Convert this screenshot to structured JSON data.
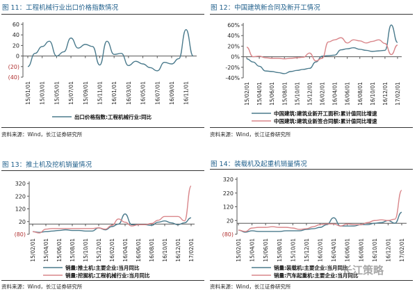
{
  "watermark": "长江策略",
  "chart_data": [
    {
      "type": "line",
      "title": "图 11：工程机械行业出口价格指数情况",
      "source": "资料来源：Wind，长江证券研究所",
      "ylim": [
        -40,
        60
      ],
      "yticks": [
        "60",
        "40",
        "20",
        "0",
        "(20)",
        "(40)"
      ],
      "ytick_values": [
        60,
        40,
        20,
        0,
        -20,
        -40
      ],
      "x": [
        "15/01",
        "15/02",
        "15/03",
        "15/04",
        "15/05",
        "15/06",
        "15/07",
        "15/08",
        "15/09",
        "15/10",
        "15/11",
        "15/12",
        "16/01",
        "16/02",
        "16/03",
        "16/04",
        "16/05",
        "16/06",
        "16/07",
        "16/08",
        "16/09",
        "16/10",
        "16/11",
        "16/12"
      ],
      "xticks": [
        "15/01/01",
        "15/03/01",
        "15/05/01",
        "15/07/01",
        "15/09/01",
        "15/11/01",
        "16/01/01",
        "16/03/01",
        "16/05/01",
        "16/07/01",
        "16/09/01",
        "16/11/01"
      ],
      "series": [
        {
          "name": "出口价格指数:工程机械行业:同比",
          "color": "#4a7a8c",
          "values": [
            -20,
            5,
            18,
            28,
            0,
            8,
            34,
            15,
            22,
            18,
            -17,
            28,
            3,
            5,
            -18,
            -10,
            -15,
            -22,
            -28,
            -12,
            -15,
            -5,
            50,
            0
          ]
        }
      ]
    },
    {
      "type": "line",
      "title": "图 12：中国建筑新合同及新开工情况",
      "source": "资料来源：Wind，长江证券研究所",
      "ylim": [
        -40,
        60
      ],
      "yticks": [
        "60%",
        "40%",
        "20%",
        "0%",
        "-20%",
        "-40%"
      ],
      "ytick_values": [
        60,
        40,
        20,
        0,
        -20,
        -40
      ],
      "x": [
        "15/02",
        "15/03",
        "15/04",
        "15/05",
        "15/06",
        "15/07",
        "15/08",
        "15/09",
        "15/10",
        "15/11",
        "15/12",
        "16/01",
        "16/02",
        "16/03",
        "16/04",
        "16/05",
        "16/06",
        "16/07",
        "16/08",
        "16/09",
        "16/10",
        "16/11",
        "16/12",
        "17/01",
        "17/02"
      ],
      "xticks": [
        "15/02/01",
        "15/04/01",
        "15/06/01",
        "15/08/01",
        "15/10/01",
        "15/12/01",
        "16/02/01",
        "16/04/01",
        "16/06/01",
        "16/08/01",
        "16/10/01",
        "16/12/01",
        "17/02/01"
      ],
      "series": [
        {
          "name": "中国建筑:建筑业新开工面积:累计值同比增速",
          "color": "#4a7a8c",
          "values": [
            -4,
            -10,
            -18,
            -27,
            -28,
            -30,
            -32,
            -28,
            -26,
            -24,
            -22,
            -10,
            1,
            2,
            3,
            13,
            15,
            17,
            14,
            12,
            10,
            11,
            12,
            60,
            27
          ]
        },
        {
          "name": "中国建筑:建筑业新签合同额:累计值同比增速",
          "color": "#d9868a",
          "values": [
            18,
            0,
            1,
            -2,
            -3,
            -3,
            -4,
            -3,
            -2,
            -1,
            7,
            -8,
            -3,
            28,
            32,
            36,
            26,
            32,
            30,
            26,
            29,
            32,
            25,
            4,
            22
          ]
        }
      ]
    },
    {
      "type": "line",
      "title": "图 13：推土机及挖机销量情况",
      "source": "资料来源：Wind，长江证券研究所",
      "ylim": [
        -80,
        320
      ],
      "yticks": [
        "320",
        "220",
        "120",
        "20",
        "(80)"
      ],
      "ytick_values": [
        320,
        220,
        120,
        20,
        -80
      ],
      "x": [
        "15/02",
        "15/03",
        "15/04",
        "15/05",
        "15/06",
        "15/07",
        "15/08",
        "15/09",
        "15/10",
        "15/11",
        "15/12",
        "16/01",
        "16/02",
        "16/03",
        "16/04",
        "16/05",
        "16/06",
        "16/07",
        "16/08",
        "16/09",
        "16/10",
        "16/11",
        "16/12",
        "17/01",
        "17/02"
      ],
      "xticks": [
        "15/02/01",
        "15/04/01",
        "15/06/01",
        "15/08/01",
        "15/10/01",
        "15/12/01",
        "16/02/01",
        "16/04/01",
        "16/06/01",
        "16/08/01",
        "16/10/01",
        "16/12/01",
        "17/02/01"
      ],
      "series": [
        {
          "name": "销量:推土机:主要企业:当月同比",
          "color": "#4a7a8c",
          "values": [
            -60,
            -65,
            -60,
            -55,
            -50,
            -45,
            -50,
            -50,
            -55,
            -55,
            -30,
            -45,
            -20,
            0,
            80,
            -5,
            -5,
            -5,
            -10,
            15,
            25,
            10,
            -5,
            10,
            50
          ]
        },
        {
          "name": "销量:挖掘机:工程机械行业:当月同比",
          "color": "#d9868a",
          "values": [
            -60,
            -70,
            -40,
            -35,
            -35,
            -35,
            -35,
            -35,
            -35,
            -35,
            -30,
            -40,
            -10,
            40,
            15,
            -15,
            -5,
            -5,
            5,
            30,
            60,
            60,
            60,
            25,
            300
          ]
        }
      ]
    },
    {
      "type": "line",
      "title": "图 14：装载机及起重机销量情况",
      "source": "资料来源：Wind，长江证券研究所",
      "ylim": [
        -80,
        320
      ],
      "yticks": [
        "320",
        "220",
        "120",
        "20",
        "(80)"
      ],
      "ytick_values": [
        320,
        220,
        120,
        20,
        -80
      ],
      "x": [
        "15/02",
        "15/03",
        "15/04",
        "15/05",
        "15/06",
        "15/07",
        "15/08",
        "15/09",
        "15/10",
        "15/11",
        "15/12",
        "16/01",
        "16/02",
        "16/03",
        "16/04",
        "16/05",
        "16/06",
        "16/07",
        "16/08",
        "16/09",
        "16/10",
        "16/11",
        "16/12",
        "17/01",
        "17/02"
      ],
      "xticks": [
        "15/02/01",
        "15/04/01",
        "15/06/01",
        "15/08/01",
        "15/10/01",
        "15/12/01",
        "16/02/01",
        "16/04/01",
        "16/06/01",
        "16/08/01",
        "16/10/01",
        "16/12/01",
        "17/02/01"
      ],
      "series": [
        {
          "name": "销量:装载机:主要企业:当月同比",
          "color": "#4a7a8c",
          "values": [
            -50,
            -65,
            -55,
            -60,
            -60,
            -60,
            -60,
            -55,
            -55,
            -55,
            -45,
            -40,
            -30,
            -10,
            40,
            -20,
            -20,
            -20,
            -10,
            -10,
            0,
            5,
            20,
            0,
            80
          ]
        },
        {
          "name": "销量:汽车起重机:主要企业:当月同比",
          "color": "#d9868a",
          "values": [
            -50,
            -60,
            -35,
            -30,
            -30,
            -25,
            -30,
            -30,
            -35,
            -45,
            -40,
            -25,
            -10,
            -5,
            -5,
            -20,
            -5,
            -10,
            -10,
            5,
            20,
            25,
            20,
            30,
            240
          ]
        }
      ]
    }
  ]
}
